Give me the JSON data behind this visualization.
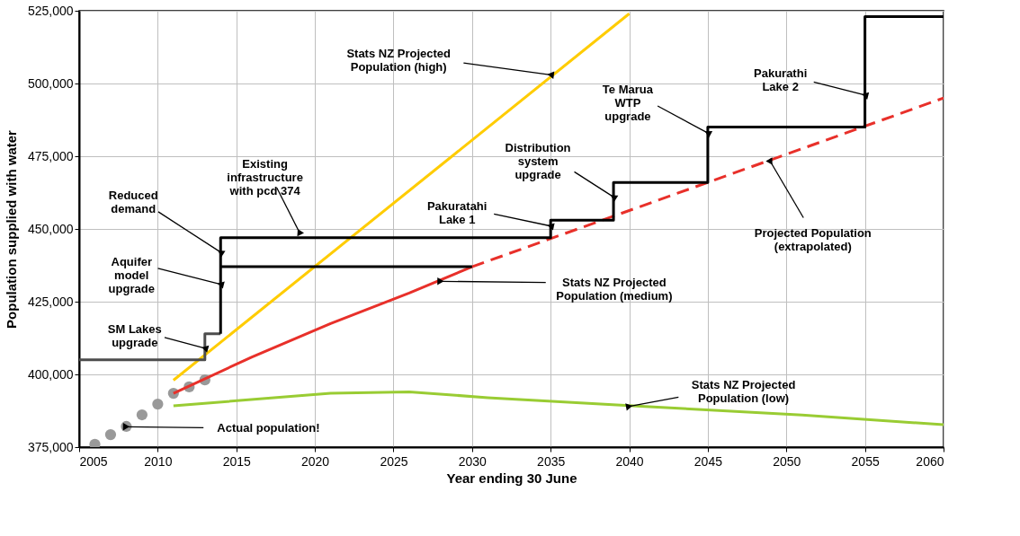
{
  "chart_data": {
    "type": "line",
    "xlabel": "Year ending 30 June",
    "ylabel": "Population supplied with water",
    "xlim": [
      2005,
      2060
    ],
    "xticks": [
      2005,
      2010,
      2015,
      2020,
      2025,
      2030,
      2035,
      2040,
      2045,
      2050,
      2055,
      2060
    ],
    "ylim": [
      375000,
      525000
    ],
    "yticks": [
      {
        "value": 375000,
        "label": "375,000"
      },
      {
        "value": 400000,
        "label": "400,000"
      },
      {
        "value": 425000,
        "label": "425,000"
      },
      {
        "value": 450000,
        "label": "450,000"
      },
      {
        "value": 475000,
        "label": "475,000"
      },
      {
        "value": 500000,
        "label": "500,000"
      },
      {
        "value": 525000,
        "label": "525,000"
      }
    ],
    "grid": true,
    "series": [
      {
        "type": "scatter",
        "marker": "circle",
        "color": "#999999",
        "x": [
          2006,
          2007,
          2008,
          2009,
          2010,
          2011,
          2012,
          2013
        ],
        "values": [
          376000,
          379300,
          382100,
          386100,
          389800,
          393500,
          395700,
          398100
        ]
      },
      {
        "color": "#ffcc00",
        "x": [
          2011,
          2040
        ],
        "values": [
          398000,
          524000
        ]
      },
      {
        "color": "#e8302a",
        "x": [
          2011,
          2016,
          2021,
          2026,
          2030
        ],
        "values": [
          393500,
          406000,
          417500,
          428000,
          437000
        ]
      },
      {
        "color": "#e8302a",
        "line_style": "dashed",
        "x": [
          2030,
          2060
        ],
        "values": [
          437000,
          495000
        ]
      },
      {
        "color": "#99cc33",
        "x": [
          2011,
          2021,
          2026,
          2031,
          2041,
          2051,
          2060
        ],
        "values": [
          389200,
          393500,
          394000,
          392000,
          389000,
          386000,
          382700
        ]
      },
      {
        "type": "step",
        "color": "#4d4d4d",
        "x": [
          2005,
          2013,
          2014
        ],
        "values": [
          405000,
          414000,
          414000
        ]
      },
      {
        "type": "step",
        "color": "#000000",
        "x": [
          2014,
          2014,
          2035,
          2039,
          2045,
          2055,
          2060
        ],
        "values": [
          414000,
          447000,
          453000,
          466000,
          485000,
          523000,
          523000
        ]
      },
      {
        "type": "step",
        "color": "#000000",
        "x": [
          2014,
          2030
        ],
        "values": [
          437000,
          437000
        ]
      }
    ],
    "annotations": [
      {
        "text": "Stats NZ Projected\nPopulation (high)",
        "x": 2035,
        "y": 503000
      },
      {
        "text": "Te Marua\nWTP\nupgrade",
        "x": 2045,
        "y": 483000
      },
      {
        "text": "Pakurathi\nLake 2",
        "x": 2055,
        "y": 496000
      },
      {
        "text": "Distribution\nsystem\nupgrade",
        "x": 2039,
        "y": 461000
      },
      {
        "text": "Pakuratahi\nLake 1",
        "x": 2035,
        "y": 451000
      },
      {
        "text": "Existing\ninfrastructure\nwith pcd 374",
        "x": 2019,
        "y": 449000
      },
      {
        "text": "Reduced\ndemand",
        "x": 2014,
        "y": 442000
      },
      {
        "text": "Aquifer\nmodel\nupgrade",
        "x": 2014,
        "y": 431000
      },
      {
        "text": "SM Lakes\nupgrade",
        "x": 2013,
        "y": 409000
      },
      {
        "text": "Stats NZ Projected\nPopulation (medium)",
        "x": 2028,
        "y": 432000
      },
      {
        "text": "Projected Population\n(extrapolated)",
        "x": 2049,
        "y": 473000
      },
      {
        "text": "Stats NZ Projected\nPopulation (low)",
        "x": 2040,
        "y": 389000
      },
      {
        "text": "Actual population!",
        "x": 2008,
        "y": 382000
      }
    ]
  }
}
